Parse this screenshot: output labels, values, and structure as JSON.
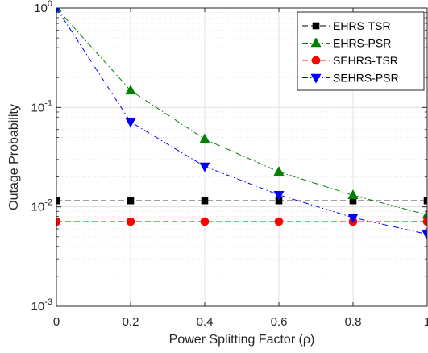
{
  "chart_data": {
    "type": "line",
    "title": "",
    "xlabel": "Power Splitting Factor (ρ)",
    "ylabel": "Outage Probability",
    "xlim": [
      0,
      1
    ],
    "ylim": [
      0.001,
      1
    ],
    "yscale": "log",
    "grid": true,
    "legend_position": "top-right",
    "x_ticks": [
      {
        "value": 0,
        "label": "0"
      },
      {
        "value": 0.2,
        "label": "0.2"
      },
      {
        "value": 0.4,
        "label": "0.4"
      },
      {
        "value": 0.6,
        "label": "0.6"
      },
      {
        "value": 0.8,
        "label": "0.8"
      },
      {
        "value": 1,
        "label": "1"
      }
    ],
    "y_ticks": [
      {
        "value": 1,
        "base": "10",
        "exp": "0"
      },
      {
        "value": 0.1,
        "base": "10",
        "exp": "-1"
      },
      {
        "value": 0.01,
        "base": "10",
        "exp": "-2"
      },
      {
        "value": 0.001,
        "base": "10",
        "exp": "-3"
      }
    ],
    "x": [
      0,
      0.2,
      0.4,
      0.6,
      0.8,
      1
    ],
    "series": [
      {
        "name": "EHRS-TSR",
        "color": "#000000",
        "marker": "square",
        "dash": "dashed",
        "values": [
          0.0115,
          0.0115,
          0.0115,
          0.0115,
          0.0115,
          0.0115
        ]
      },
      {
        "name": "EHRS-PSR",
        "color": "#007f00",
        "marker": "triangle-up",
        "dash": "dashdot",
        "values": [
          1.0,
          0.148,
          0.048,
          0.0225,
          0.0131,
          0.0083
        ]
      },
      {
        "name": "SEHRS-TSR",
        "color": "#ff0000",
        "marker": "circle",
        "dash": "dashed",
        "values": [
          0.0071,
          0.0071,
          0.0071,
          0.0071,
          0.0071,
          0.0071
        ]
      },
      {
        "name": "SEHRS-PSR",
        "color": "#0000ff",
        "marker": "triangle-down",
        "dash": "dashdot",
        "values": [
          1.0,
          0.0715,
          0.0255,
          0.0132,
          0.0078,
          0.0053
        ]
      }
    ]
  }
}
